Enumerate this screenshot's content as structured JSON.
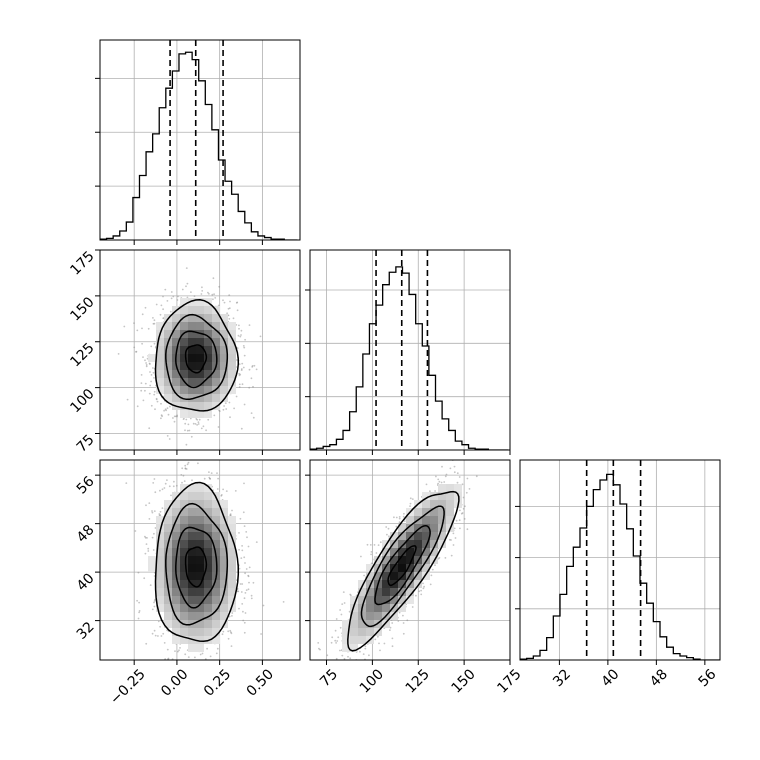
{
  "colors": {
    "axes": "#000000",
    "grid": "#b0b0b0",
    "hist": "#000000",
    "quantile": "#000000",
    "density_dark": "#000000",
    "density_light": "#ffffff",
    "points": "#8c8c8c"
  },
  "chart_data": {
    "type": "corner",
    "description_free": true,
    "parameters": [
      {
        "key": "p0",
        "range": [
          -0.45,
          0.72
        ],
        "ticks": [
          -0.25,
          0.0,
          0.25,
          0.5
        ],
        "tick_labels": [
          "−0.25",
          "0.00",
          "0.25",
          "0.50"
        ],
        "quantiles": [
          -0.04,
          0.11,
          0.27
        ]
      },
      {
        "key": "p1",
        "range": [
          66,
          175
        ],
        "ticks": [
          75,
          100,
          125,
          150,
          175
        ],
        "tick_labels": [
          "75",
          "100",
          "125",
          "150",
          "175"
        ],
        "quantiles": [
          102,
          116,
          130
        ]
      },
      {
        "key": "p2",
        "range": [
          25.5,
          58.5
        ],
        "ticks": [
          32,
          40,
          48,
          56
        ],
        "tick_labels": [
          "32",
          "40",
          "48",
          "56"
        ],
        "quantiles": [
          36.5,
          40.9,
          45.4
        ]
      }
    ],
    "histograms": [
      {
        "param": 0,
        "bins": [
          -0.45,
          -0.4115,
          -0.373,
          -0.3345,
          -0.296,
          -0.2575,
          -0.219,
          -0.1805,
          -0.142,
          -0.1035,
          -0.065,
          -0.0265,
          0.012,
          0.0505,
          0.089,
          0.1275,
          0.166,
          0.2045,
          0.243,
          0.2815,
          0.32,
          0.3585,
          0.397,
          0.4355,
          0.474,
          0.5125,
          0.551,
          0.5895,
          0.628,
          0.6665,
          0.705
        ],
        "counts": [
          1,
          2,
          5,
          11,
          22,
          52,
          79,
          108,
          130,
          162,
          186,
          207,
          228,
          230,
          221,
          195,
          166,
          135,
          98,
          72,
          56,
          35,
          21,
          10,
          5,
          3,
          1,
          1,
          0,
          0
        ],
        "ymax": 245,
        "yticks": [
          66,
          132,
          198
        ]
      },
      {
        "param": 1,
        "bins": [
          66,
          69.6,
          73.2,
          76.8,
          80.4,
          84,
          87.6,
          91.2,
          94.8,
          98.4,
          102,
          105.6,
          109.2,
          112.8,
          116.4,
          120,
          123.6,
          127.2,
          130.8,
          134.4,
          138,
          141.6,
          145.2,
          148.8,
          152.4,
          156,
          159.6,
          163.2,
          166.8,
          170.4,
          174
        ],
        "counts": [
          1,
          2,
          4,
          6,
          12,
          22,
          43,
          71,
          108,
          142,
          163,
          186,
          200,
          206,
          199,
          175,
          142,
          117,
          84,
          55,
          35,
          22,
          10,
          6,
          2,
          1,
          1,
          0,
          0,
          0
        ],
        "ymax": 225,
        "yticks": [
          60,
          120,
          180
        ]
      },
      {
        "param": 2,
        "bins": [
          25.5,
          26.6,
          27.7,
          28.8,
          29.9,
          31,
          32.1,
          33.2,
          34.3,
          35.4,
          36.5,
          37.6,
          38.7,
          39.8,
          40.9,
          42,
          43.1,
          44.2,
          45.3,
          46.4,
          47.5,
          48.6,
          49.7,
          50.8,
          51.9,
          53,
          54.1,
          55.2,
          56.3,
          57.4,
          58.5
        ],
        "counts": [
          1,
          2,
          5,
          12,
          28,
          55,
          82,
          117,
          141,
          165,
          192,
          213,
          225,
          232,
          219,
          195,
          164,
          130,
          96,
          71,
          48,
          29,
          16,
          8,
          5,
          3,
          1,
          0,
          0,
          0
        ],
        "ymax": 250,
        "yticks": [
          64,
          128,
          192
        ]
      }
    ],
    "pairs": [
      {
        "x": 0,
        "y": 1,
        "mean": [
          0.11,
          116
        ],
        "sd": [
          0.12,
          15
        ],
        "rho": 0.0,
        "levels": [
          "0.5 sigma",
          "1 sigma",
          "1.5 sigma",
          "2 sigma"
        ]
      },
      {
        "x": 0,
        "y": 2,
        "mean": [
          0.11,
          41
        ],
        "sd": [
          0.12,
          6.5
        ],
        "rho": 0.0,
        "levels": [
          "0.5 sigma",
          "1 sigma",
          "1.5 sigma",
          "2 sigma"
        ]
      },
      {
        "x": 1,
        "y": 2,
        "mean": [
          116,
          41
        ],
        "sd": [
          15,
          6.5
        ],
        "rho": 0.85,
        "levels": [
          "0.5 sigma",
          "1 sigma",
          "1.5 sigma",
          "2 sigma"
        ]
      }
    ],
    "grid": true
  }
}
